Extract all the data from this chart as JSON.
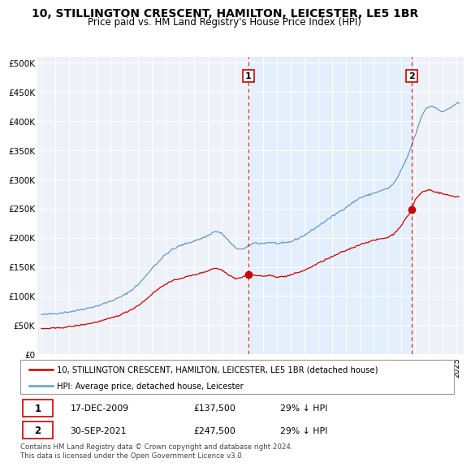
{
  "title": "10, STILLINGTON CRESCENT, HAMILTON, LEICESTER, LE5 1BR",
  "subtitle": "Price paid vs. HM Land Registry's House Price Index (HPI)",
  "ylabel_ticks": [
    "£0",
    "£50K",
    "£100K",
    "£150K",
    "£200K",
    "£250K",
    "£300K",
    "£350K",
    "£400K",
    "£450K",
    "£500K"
  ],
  "ytick_vals": [
    0,
    50000,
    100000,
    150000,
    200000,
    250000,
    300000,
    350000,
    400000,
    450000,
    500000
  ],
  "ylim": [
    0,
    510000
  ],
  "xlim_start": 1994.7,
  "xlim_end": 2025.5,
  "sale1_date": "17-DEC-2009",
  "sale1_price": 137500,
  "sale1_pct": "29%",
  "sale2_date": "30-SEP-2021",
  "sale2_price": 247500,
  "sale2_pct": "29%",
  "sale1_x": 2009.96,
  "sale2_x": 2021.75,
  "legend_line1": "10, STILLINGTON CRESCENT, HAMILTON, LEICESTER, LE5 1BR (detached house)",
  "legend_line2": "HPI: Average price, detached house, Leicester",
  "footer": "Contains HM Land Registry data © Crown copyright and database right 2024.\nThis data is licensed under the Open Government Licence v3.0.",
  "property_color": "#cc0000",
  "hpi_color": "#6699cc",
  "hpi_fill_color": "#ddeeff",
  "dashed_line_color": "#cc0000",
  "background_color": "#ffffff",
  "plot_bg_color": "#eef2f8",
  "grid_color": "#ffffff",
  "hpi_key_x": [
    1995.0,
    1995.5,
    1996.0,
    1996.5,
    1997.0,
    1997.5,
    1998.0,
    1998.5,
    1999.0,
    1999.5,
    2000.0,
    2000.5,
    2001.0,
    2001.5,
    2002.0,
    2002.5,
    2003.0,
    2003.5,
    2004.0,
    2004.5,
    2005.0,
    2005.5,
    2006.0,
    2006.5,
    2007.0,
    2007.25,
    2007.5,
    2007.75,
    2008.0,
    2008.25,
    2008.5,
    2008.75,
    2009.0,
    2009.25,
    2009.5,
    2009.75,
    2010.0,
    2010.25,
    2010.5,
    2010.75,
    2011.0,
    2011.5,
    2012.0,
    2012.5,
    2013.0,
    2013.5,
    2014.0,
    2014.5,
    2015.0,
    2015.5,
    2016.0,
    2016.5,
    2017.0,
    2017.5,
    2018.0,
    2018.5,
    2019.0,
    2019.5,
    2020.0,
    2020.25,
    2020.5,
    2020.75,
    2021.0,
    2021.25,
    2021.5,
    2021.75,
    2022.0,
    2022.25,
    2022.5,
    2022.75,
    2023.0,
    2023.25,
    2023.5,
    2023.75,
    2024.0,
    2024.25,
    2024.5,
    2024.75,
    2025.0
  ],
  "hpi_key_y": [
    68000,
    69000,
    70000,
    71500,
    73000,
    75000,
    77500,
    80000,
    83000,
    87000,
    91000,
    96000,
    102000,
    110000,
    120000,
    133000,
    148000,
    160000,
    172000,
    180000,
    186000,
    190000,
    194000,
    198000,
    203000,
    207000,
    210000,
    210000,
    207000,
    202000,
    195000,
    188000,
    183000,
    181000,
    180000,
    182000,
    186000,
    190000,
    191000,
    190000,
    190000,
    192000,
    190000,
    190000,
    193000,
    198000,
    204000,
    212000,
    220000,
    228000,
    236000,
    244000,
    252000,
    260000,
    268000,
    272000,
    276000,
    280000,
    284000,
    288000,
    294000,
    304000,
    316000,
    328000,
    342000,
    358000,
    375000,
    392000,
    410000,
    420000,
    424000,
    425000,
    422000,
    418000,
    416000,
    418000,
    422000,
    426000,
    430000
  ],
  "prop_key_x": [
    1995.0,
    1995.5,
    1996.0,
    1996.5,
    1997.0,
    1997.5,
    1998.0,
    1998.5,
    1999.0,
    1999.5,
    2000.0,
    2000.5,
    2001.0,
    2001.5,
    2002.0,
    2002.5,
    2003.0,
    2003.5,
    2004.0,
    2004.5,
    2005.0,
    2005.5,
    2006.0,
    2006.5,
    2007.0,
    2007.5,
    2008.0,
    2008.5,
    2009.0,
    2009.5,
    2009.96,
    2010.0,
    2010.5,
    2011.0,
    2011.5,
    2012.0,
    2012.5,
    2013.0,
    2013.5,
    2014.0,
    2014.5,
    2015.0,
    2015.5,
    2016.0,
    2016.5,
    2017.0,
    2017.5,
    2018.0,
    2018.5,
    2019.0,
    2019.5,
    2020.0,
    2020.5,
    2021.0,
    2021.75,
    2022.0,
    2022.5,
    2023.0,
    2023.5,
    2024.0,
    2024.5,
    2025.0
  ],
  "prop_key_y": [
    44000,
    44500,
    45000,
    46000,
    47500,
    49000,
    51000,
    53000,
    55500,
    58500,
    62000,
    66000,
    71000,
    77000,
    84000,
    93000,
    104000,
    113000,
    121000,
    126000,
    130000,
    133000,
    136000,
    139000,
    143000,
    148000,
    145000,
    137000,
    130000,
    132000,
    137500,
    137500,
    135000,
    134000,
    135000,
    133000,
    133000,
    136000,
    140000,
    144000,
    150000,
    156000,
    162000,
    167000,
    173000,
    178000,
    183000,
    188000,
    192000,
    195000,
    198000,
    200000,
    207000,
    221000,
    247500,
    265000,
    278000,
    282000,
    278000,
    275000,
    272000,
    270000
  ]
}
